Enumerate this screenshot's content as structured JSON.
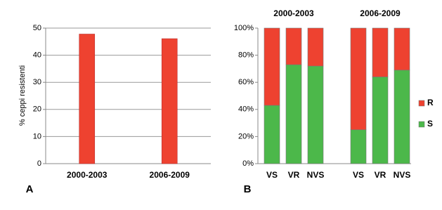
{
  "chart_data": [
    {
      "type": "bar",
      "panel_label": "A",
      "y_label": "% ceppi resistenti",
      "categories": [
        "2000-2003",
        "2006-2009"
      ],
      "values": [
        47.8,
        46.1
      ],
      "color": "#ee4230",
      "ylim": [
        0,
        50
      ],
      "yticks": [
        0,
        10,
        20,
        30,
        40,
        50
      ],
      "grid": true
    },
    {
      "type": "stacked_bar",
      "panel_label": "B",
      "group_labels": [
        "2000-2003",
        "2006-2009"
      ],
      "categories": [
        "VS",
        "VR",
        "NVS",
        "VS",
        "VR",
        "NVS"
      ],
      "series": [
        {
          "name": "S",
          "color": "#4cb84a",
          "values": [
            43,
            73,
            72,
            25,
            64,
            69
          ]
        },
        {
          "name": "R",
          "color": "#ee4230",
          "values": [
            57,
            27,
            28,
            75,
            36,
            31
          ]
        }
      ],
      "ylim": [
        0,
        100
      ],
      "yticks": [
        {
          "value": 0,
          "label": "0%"
        },
        {
          "value": 20,
          "label": "20%"
        },
        {
          "value": 40,
          "label": "40%"
        },
        {
          "value": 60,
          "label": "60%"
        },
        {
          "value": 80,
          "label": "80%"
        },
        {
          "value": 100,
          "label": "100%"
        }
      ],
      "grid": false
    }
  ]
}
